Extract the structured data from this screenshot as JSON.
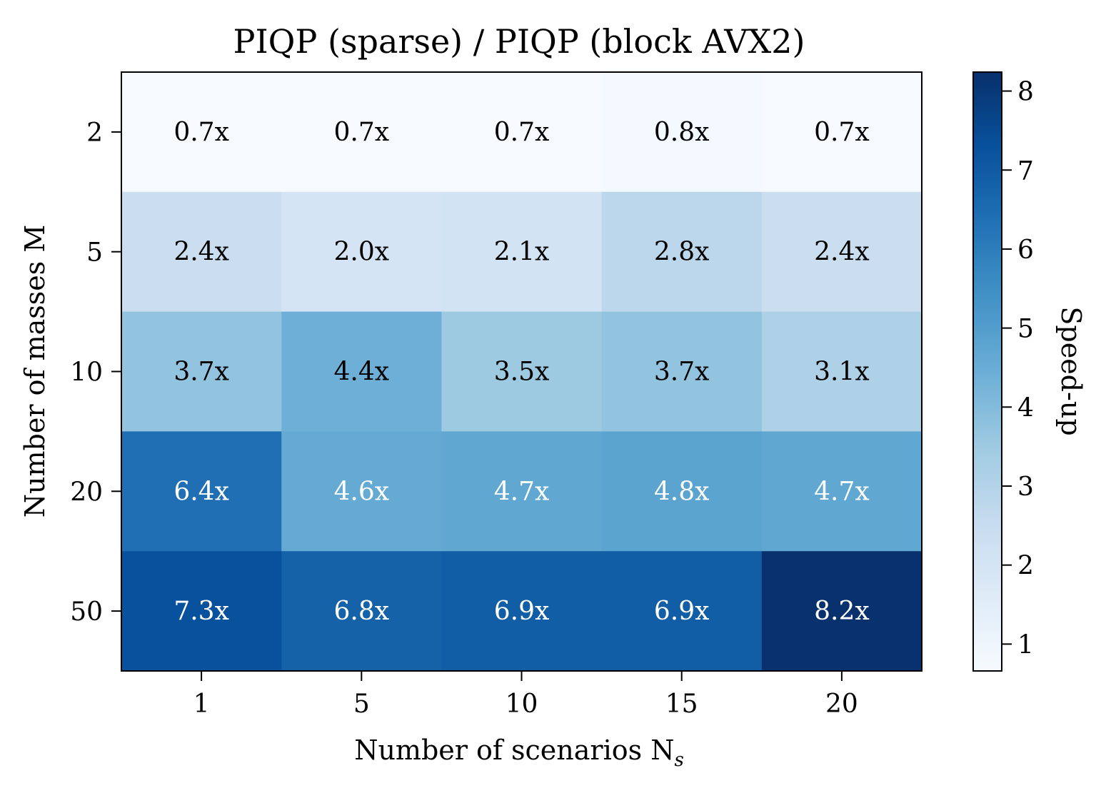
{
  "chart_data": {
    "type": "heatmap",
    "title": "PIQP (sparse) / PIQP (block AVX2)",
    "xlabel": "Number of scenarios N",
    "xlabel_sub": "s",
    "ylabel": "Number of masses M",
    "colorbar_label": "Speed-up",
    "colormap": "Blues",
    "x_categories": [
      "1",
      "5",
      "10",
      "15",
      "20"
    ],
    "y_categories": [
      "2",
      "5",
      "10",
      "20",
      "50"
    ],
    "values": [
      [
        0.7,
        0.7,
        0.7,
        0.8,
        0.7
      ],
      [
        2.4,
        2.0,
        2.1,
        2.8,
        2.4
      ],
      [
        3.7,
        4.4,
        3.5,
        3.7,
        3.1
      ],
      [
        6.4,
        4.6,
        4.7,
        4.8,
        4.7
      ],
      [
        7.3,
        6.8,
        6.9,
        6.9,
        8.2
      ]
    ],
    "cell_labels": [
      [
        "0.7x",
        "0.7x",
        "0.7x",
        "0.8x",
        "0.7x"
      ],
      [
        "2.4x",
        "2.0x",
        "2.1x",
        "2.8x",
        "2.4x"
      ],
      [
        "3.7x",
        "4.4x",
        "3.5x",
        "3.7x",
        "3.1x"
      ],
      [
        "6.4x",
        "4.6x",
        "4.7x",
        "4.8x",
        "4.7x"
      ],
      [
        "7.3x",
        "6.8x",
        "6.9x",
        "6.9x",
        "8.2x"
      ]
    ],
    "colorbar_range": [
      0.66,
      8.24
    ],
    "colorbar_ticks": [
      "1",
      "2",
      "3",
      "4",
      "5",
      "6",
      "7",
      "8"
    ],
    "grid": false,
    "colors": {
      "min": "#f7fbff",
      "max": "#08306b",
      "text_dark": "#000000",
      "text_light": "#ffffff"
    }
  }
}
